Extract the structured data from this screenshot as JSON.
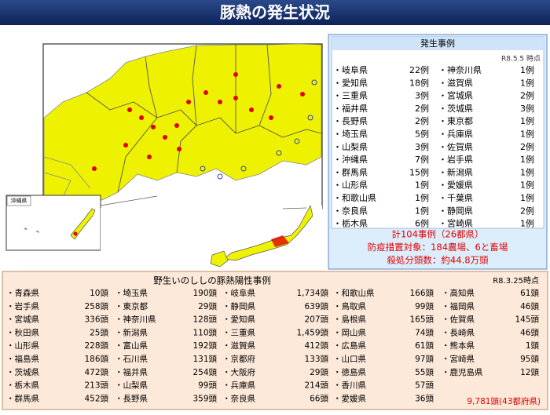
{
  "header": {
    "title": "豚熱の発生状況"
  },
  "map": {
    "inset_label": "沖縄県"
  },
  "outbreaks": {
    "title": "発生事例",
    "as_of": "R8.5.5 時点",
    "columns": [
      [
        {
          "name": "・岐阜県",
          "count": "22例"
        },
        {
          "name": "・愛知県",
          "count": "18例"
        },
        {
          "name": "・三重県",
          "count": "3例"
        },
        {
          "name": "・福井県",
          "count": "2例"
        },
        {
          "name": "・長野県",
          "count": "2例"
        },
        {
          "name": "・埼玉県",
          "count": "5例"
        },
        {
          "name": "・山梨県",
          "count": "3例"
        },
        {
          "name": "・沖縄県",
          "count": "7例"
        },
        {
          "name": "・群馬県",
          "count": "15例"
        },
        {
          "name": "・山形県",
          "count": "1例"
        },
        {
          "name": "・和歌山県",
          "count": "1例"
        },
        {
          "name": "・奈良県",
          "count": "1例"
        },
        {
          "name": "・栃木県",
          "count": "6例"
        }
      ],
      [
        {
          "name": "・神奈川県",
          "count": "1例"
        },
        {
          "name": "・滋賀県",
          "count": "1例"
        },
        {
          "name": "・宮城県",
          "count": "2例"
        },
        {
          "name": "・茨城県",
          "count": "3例"
        },
        {
          "name": "・東京都",
          "count": "1例"
        },
        {
          "name": "・兵庫県",
          "count": "1例"
        },
        {
          "name": "・佐賀県",
          "count": "2例"
        },
        {
          "name": "・岩手県",
          "count": "1例"
        },
        {
          "name": "・新潟県",
          "count": "1例"
        },
        {
          "name": "・愛媛県",
          "count": "1例"
        },
        {
          "name": "・千葉県",
          "count": "1例"
        },
        {
          "name": "・静岡県",
          "count": "2例"
        },
        {
          "name": "・宮崎県",
          "count": "1例"
        }
      ]
    ],
    "summary": [
      "計104事例（26都県）",
      "防疫措置対象：184農場、6と畜場",
      "殺処分頭数：約44.8万頭"
    ]
  },
  "wild_boar": {
    "title": "野生いのししの豚熱陽性事例",
    "as_of": "R8.3.25時点",
    "columns": [
      [
        {
          "name": "・青森県",
          "count": "10頭"
        },
        {
          "name": "・岩手県",
          "count": "258頭"
        },
        {
          "name": "・宮城県",
          "count": "336頭"
        },
        {
          "name": "・秋田県",
          "count": "25頭"
        },
        {
          "name": "・山形県",
          "count": "228頭"
        },
        {
          "name": "・福島県",
          "count": "186頭"
        },
        {
          "name": "・茨城県",
          "count": "472頭"
        },
        {
          "name": "・栃木県",
          "count": "213頭"
        },
        {
          "name": "・群馬県",
          "count": "452頭"
        }
      ],
      [
        {
          "name": "・埼玉県",
          "count": "190頭"
        },
        {
          "name": "・東京都",
          "count": "29頭"
        },
        {
          "name": "・神奈川県",
          "count": "128頭"
        },
        {
          "name": "・新潟県",
          "count": "110頭"
        },
        {
          "name": "・富山県",
          "count": "192頭"
        },
        {
          "name": "・石川県",
          "count": "131頭"
        },
        {
          "name": "・福井県",
          "count": "254頭"
        },
        {
          "name": "・山梨県",
          "count": "99頭"
        },
        {
          "name": "・長野県",
          "count": "359頭"
        }
      ],
      [
        {
          "name": "・岐阜県",
          "count": "1,734頭"
        },
        {
          "name": "・静岡県",
          "count": "639頭"
        },
        {
          "name": "・愛知県",
          "count": "207頭"
        },
        {
          "name": "・三重県",
          "count": "1,459頭"
        },
        {
          "name": "・滋賀県",
          "count": "412頭"
        },
        {
          "name": "・京都府",
          "count": "133頭"
        },
        {
          "name": "・大阪府",
          "count": "29頭"
        },
        {
          "name": "・兵庫県",
          "count": "214頭"
        },
        {
          "name": "・奈良県",
          "count": "66頭"
        }
      ],
      [
        {
          "name": "・和歌山県",
          "count": "166頭"
        },
        {
          "name": "・鳥取県",
          "count": "99頭"
        },
        {
          "name": "・島根県",
          "count": "165頭"
        },
        {
          "name": "・岡山県",
          "count": "74頭"
        },
        {
          "name": "・広島県",
          "count": "61頭"
        },
        {
          "name": "・山口県",
          "count": "97頭"
        },
        {
          "name": "・徳島県",
          "count": "55頭"
        },
        {
          "name": "・香川県",
          "count": "57頭"
        },
        {
          "name": "・愛媛県",
          "count": "36頭"
        }
      ],
      [
        {
          "name": "・高知県",
          "count": "61頭"
        },
        {
          "name": "・福岡県",
          "count": "46頭"
        },
        {
          "name": "・佐賀県",
          "count": "145頭"
        },
        {
          "name": "・長崎県",
          "count": "46頭"
        },
        {
          "name": "・熊本県",
          "count": "1頭"
        },
        {
          "name": "・宮崎県",
          "count": "95頭"
        },
        {
          "name": "・鹿児島県",
          "count": "12頭"
        }
      ]
    ],
    "total": "9,781頭(43都府県)"
  }
}
